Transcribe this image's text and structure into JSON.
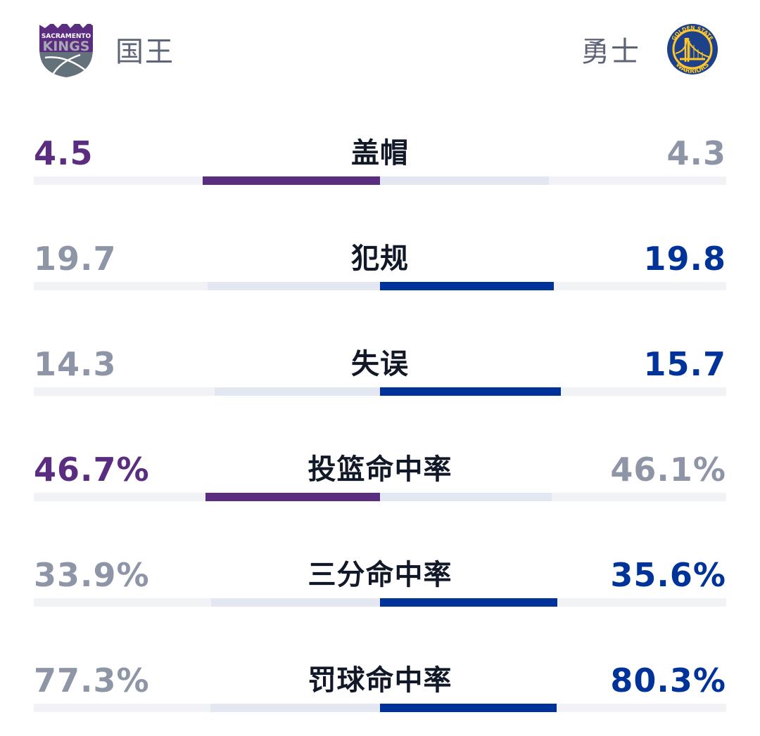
{
  "header": {
    "home_team": {
      "name": "国王",
      "logo": "sacramento-kings-logo",
      "logo_text_top": "SACRAMENTO",
      "logo_text_main": "KINGS",
      "color": "#5a2d81"
    },
    "away_team": {
      "name": "勇士",
      "logo": "golden-state-warriors-logo",
      "logo_text_top": "GOLDEN STATE",
      "logo_text_bottom": "WARRIORS",
      "color": "#003399"
    }
  },
  "colors": {
    "home_lead": "#5a2d81",
    "away_lead": "#003399",
    "trailing_text": "#8e95a6",
    "trailing_bar": "#e3e7f2",
    "track": "#f1f2f6",
    "label": "#111827"
  },
  "stats": [
    {
      "label": "盖帽",
      "home": "4.5",
      "away": "4.3",
      "leader": "home"
    },
    {
      "label": "犯规",
      "home": "19.7",
      "away": "19.8",
      "leader": "away"
    },
    {
      "label": "失误",
      "home": "14.3",
      "away": "15.7",
      "leader": "away"
    },
    {
      "label": "投篮命中率",
      "home": "46.7%",
      "away": "46.1%",
      "leader": "home"
    },
    {
      "label": "三分命中率",
      "home": "33.9%",
      "away": "35.6%",
      "leader": "away"
    },
    {
      "label": "罚球命中率",
      "home": "77.3%",
      "away": "80.3%",
      "leader": "away"
    }
  ],
  "chart_data": {
    "type": "bar",
    "orientation": "horizontal-diverging",
    "title": "",
    "categories": [
      "盖帽",
      "犯规",
      "失误",
      "投篮命中率",
      "三分命中率",
      "罚球命中率"
    ],
    "series": [
      {
        "name": "国王",
        "color": "#5a2d81",
        "values": [
          4.5,
          19.7,
          14.3,
          46.7,
          33.9,
          77.3
        ]
      },
      {
        "name": "勇士",
        "color": "#003399",
        "values": [
          4.3,
          19.8,
          15.7,
          46.1,
          35.6,
          80.3
        ]
      }
    ],
    "units": [
      "",
      "",
      "",
      "%",
      "%",
      "%"
    ],
    "legend": [
      "国王",
      "勇士"
    ],
    "legend_position": "top",
    "grid": false,
    "note": "Each side's bar length is proportional to value / (home + away); leader highlighted in team color"
  }
}
